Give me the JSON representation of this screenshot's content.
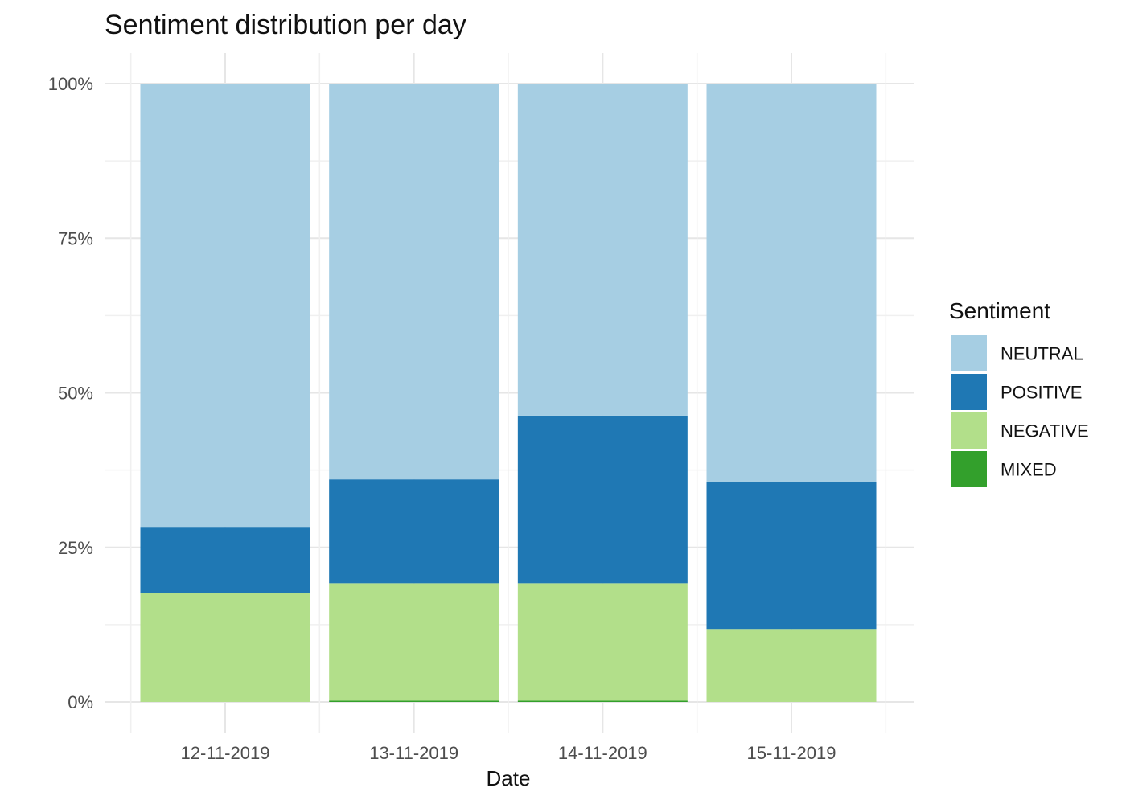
{
  "chart_data": {
    "type": "bar",
    "stacked": true,
    "normalized": true,
    "title": "Sentiment distribution per day",
    "xlabel": "Date",
    "ylabel": "",
    "categories": [
      "12-11-2019",
      "13-11-2019",
      "14-11-2019",
      "15-11-2019"
    ],
    "ylim": [
      0,
      100
    ],
    "yticks": [
      0,
      25,
      50,
      75,
      100
    ],
    "ytick_labels": [
      "0%",
      "25%",
      "50%",
      "75%",
      "100%"
    ],
    "grid": true,
    "legend": {
      "title": "Sentiment",
      "position": "right",
      "entries": [
        "NEUTRAL",
        "POSITIVE",
        "NEGATIVE",
        "MIXED"
      ]
    },
    "series": [
      {
        "name": "MIXED",
        "color": "#33a02c",
        "values": [
          0,
          0.2,
          0.2,
          0
        ]
      },
      {
        "name": "NEGATIVE",
        "color": "#b2df8a",
        "values": [
          17.6,
          19.0,
          19.0,
          11.8
        ]
      },
      {
        "name": "POSITIVE",
        "color": "#1f78b4",
        "values": [
          10.6,
          16.8,
          27.1,
          23.8
        ]
      },
      {
        "name": "NEUTRAL",
        "color": "#a6cee3",
        "values": [
          71.8,
          64.0,
          53.7,
          64.4
        ]
      }
    ],
    "colors": {
      "NEUTRAL": "#a6cee3",
      "POSITIVE": "#1f78b4",
      "NEGATIVE": "#b2df8a",
      "MIXED": "#33a02c"
    }
  }
}
